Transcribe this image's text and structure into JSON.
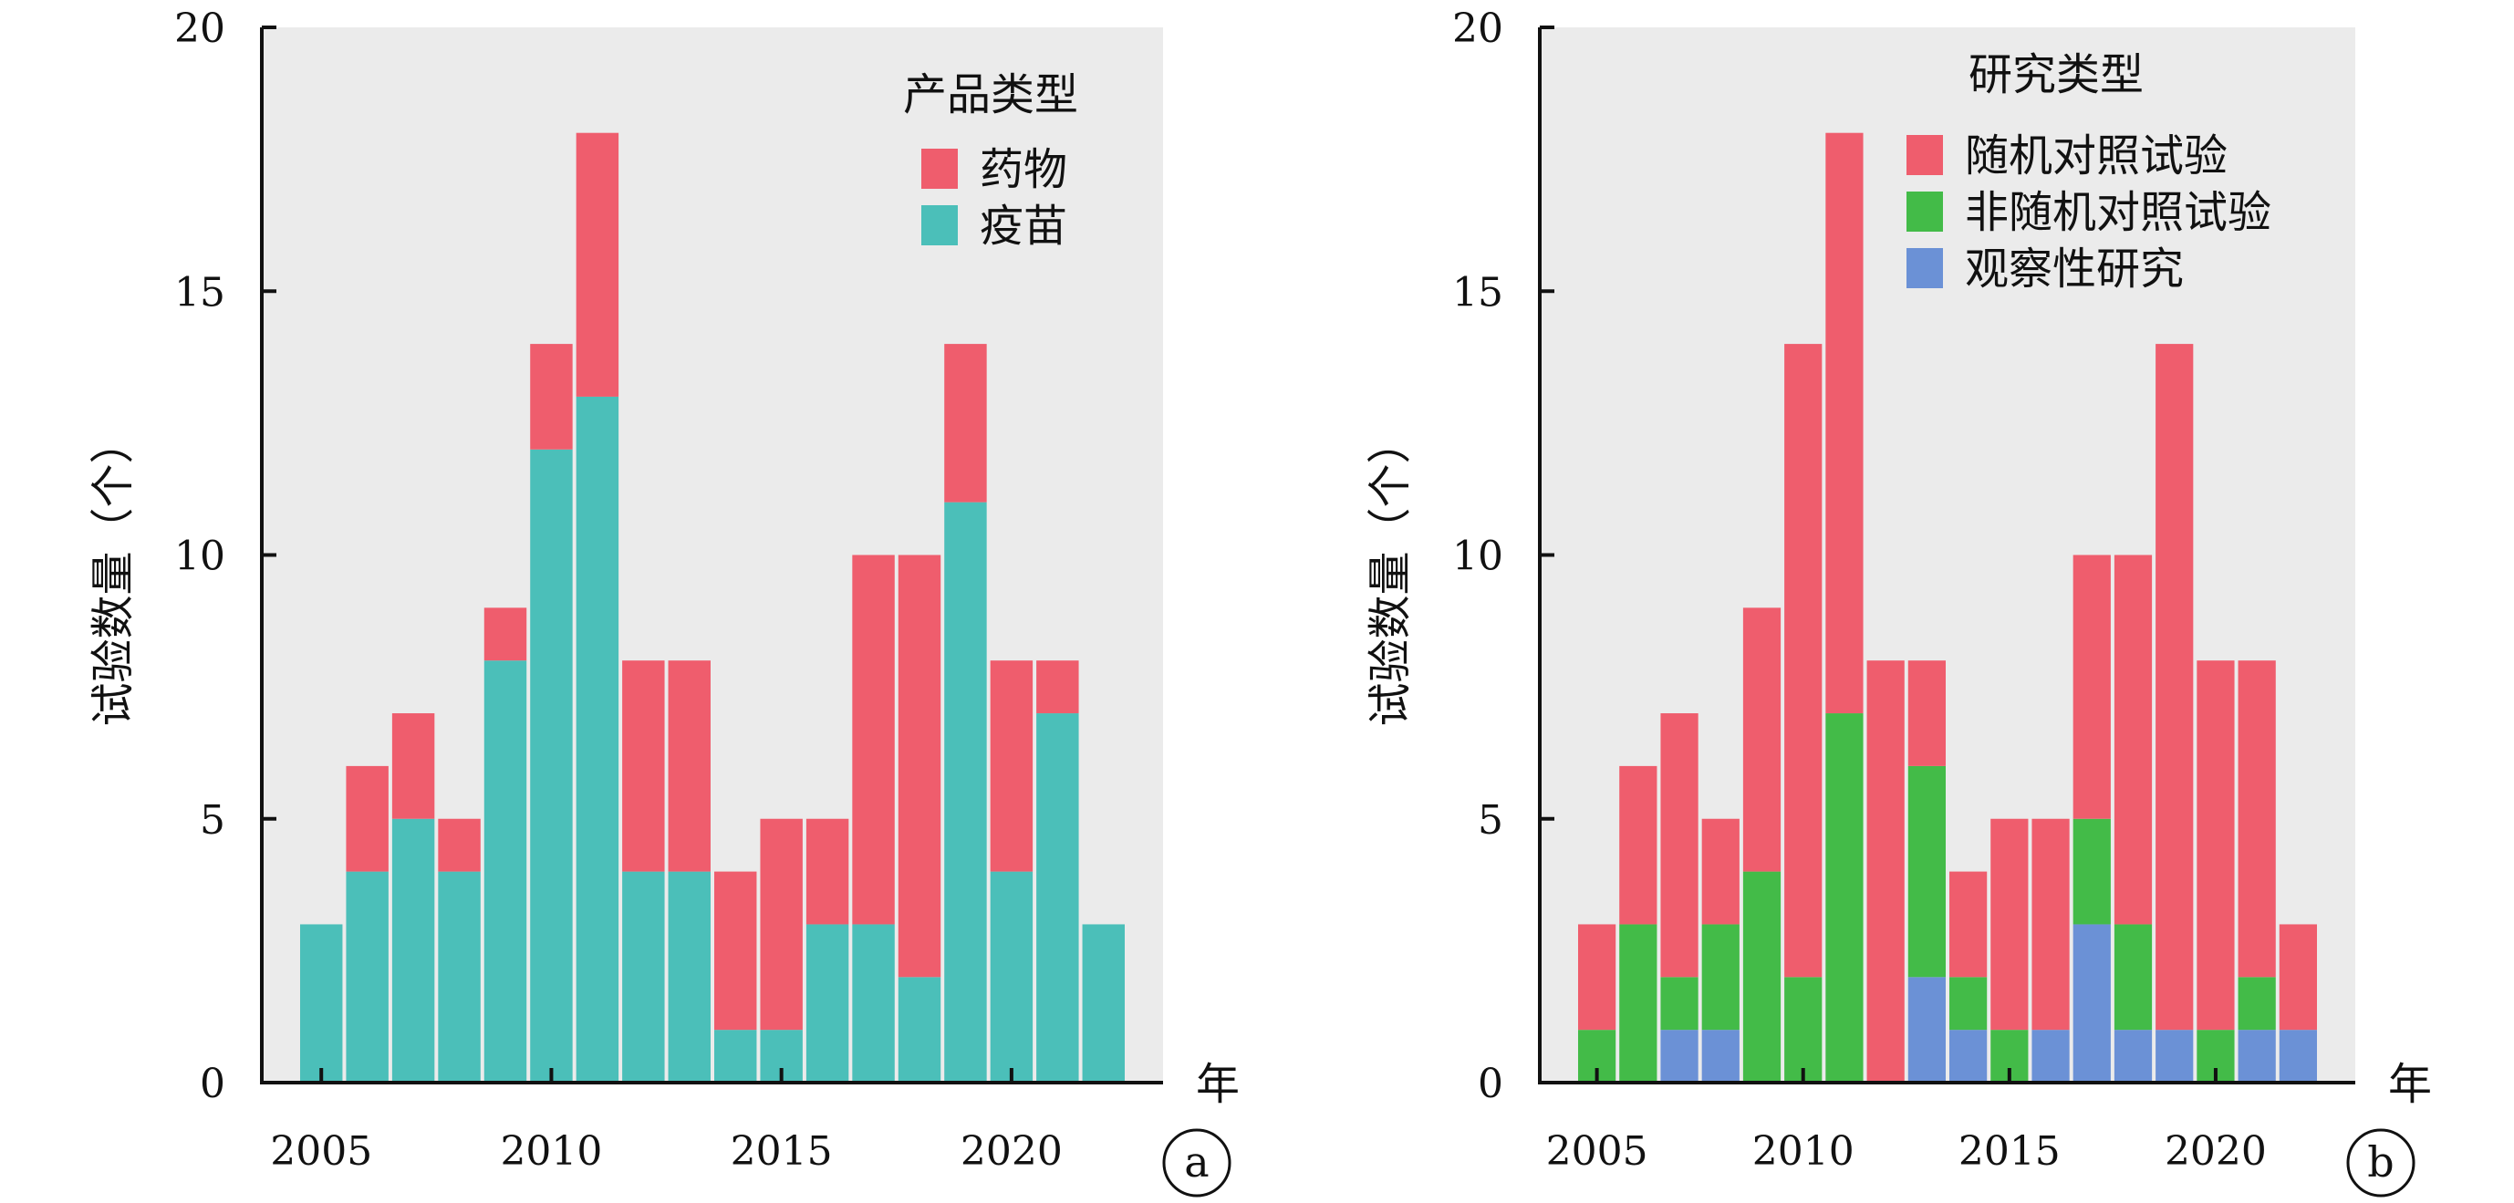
{
  "chart_data": [
    {
      "type": "bar",
      "stacked": true,
      "panel_label": "a",
      "ylabel": "试验数量（个）",
      "xlabel": "年",
      "ylim": [
        0,
        20
      ],
      "yticks": [
        0,
        5,
        10,
        15,
        20
      ],
      "xticks": [
        2005,
        2010,
        2015,
        2020
      ],
      "grid": false,
      "background": "#ebebeb",
      "legend_title": "产品类型",
      "legend_position": "top-right",
      "x": [
        2005,
        2006,
        2007,
        2008,
        2009,
        2010,
        2011,
        2012,
        2013,
        2014,
        2015,
        2016,
        2017,
        2018,
        2019,
        2020,
        2021,
        2022
      ],
      "series": [
        {
          "name": "疫苗",
          "color": "#4bbfb9",
          "values": [
            3,
            4,
            5,
            4,
            8,
            12,
            13,
            4,
            4,
            1,
            1,
            3,
            3,
            2,
            11,
            4,
            7,
            3
          ]
        },
        {
          "name": "药物",
          "color": "#ef5d6d",
          "values": [
            0,
            2,
            2,
            1,
            1,
            2,
            5,
            4,
            4,
            3,
            4,
            2,
            7,
            8,
            3,
            4,
            1,
            0
          ]
        }
      ],
      "legend_order": [
        1,
        0
      ]
    },
    {
      "type": "bar",
      "stacked": true,
      "panel_label": "b",
      "ylabel": "试验数量（个）",
      "xlabel": "年",
      "ylim": [
        0,
        20
      ],
      "yticks": [
        0,
        5,
        10,
        15,
        20
      ],
      "xticks": [
        2005,
        2010,
        2015,
        2020
      ],
      "grid": false,
      "background": "#ebebeb",
      "legend_title": "研究类型",
      "legend_position": "top-right",
      "x": [
        2005,
        2006,
        2007,
        2008,
        2009,
        2010,
        2011,
        2012,
        2013,
        2014,
        2015,
        2016,
        2017,
        2018,
        2019,
        2020,
        2021,
        2022
      ],
      "series": [
        {
          "name": "观察性研究",
          "color": "#6b91d6",
          "values": [
            0,
            0,
            1,
            1,
            0,
            0,
            0,
            0,
            2,
            1,
            0,
            1,
            3,
            1,
            1,
            0,
            1,
            1
          ]
        },
        {
          "name": "非随机对照试验",
          "color": "#43bb48",
          "values": [
            1,
            3,
            1,
            2,
            4,
            2,
            7,
            0,
            4,
            1,
            1,
            0,
            2,
            2,
            0,
            1,
            1,
            0
          ]
        },
        {
          "name": "随机对照试验",
          "color": "#ef5d6d",
          "values": [
            2,
            3,
            5,
            2,
            5,
            12,
            11,
            8,
            2,
            2,
            4,
            4,
            5,
            7,
            13,
            7,
            6,
            2
          ]
        }
      ],
      "legend_order": [
        2,
        1,
        0
      ]
    }
  ]
}
